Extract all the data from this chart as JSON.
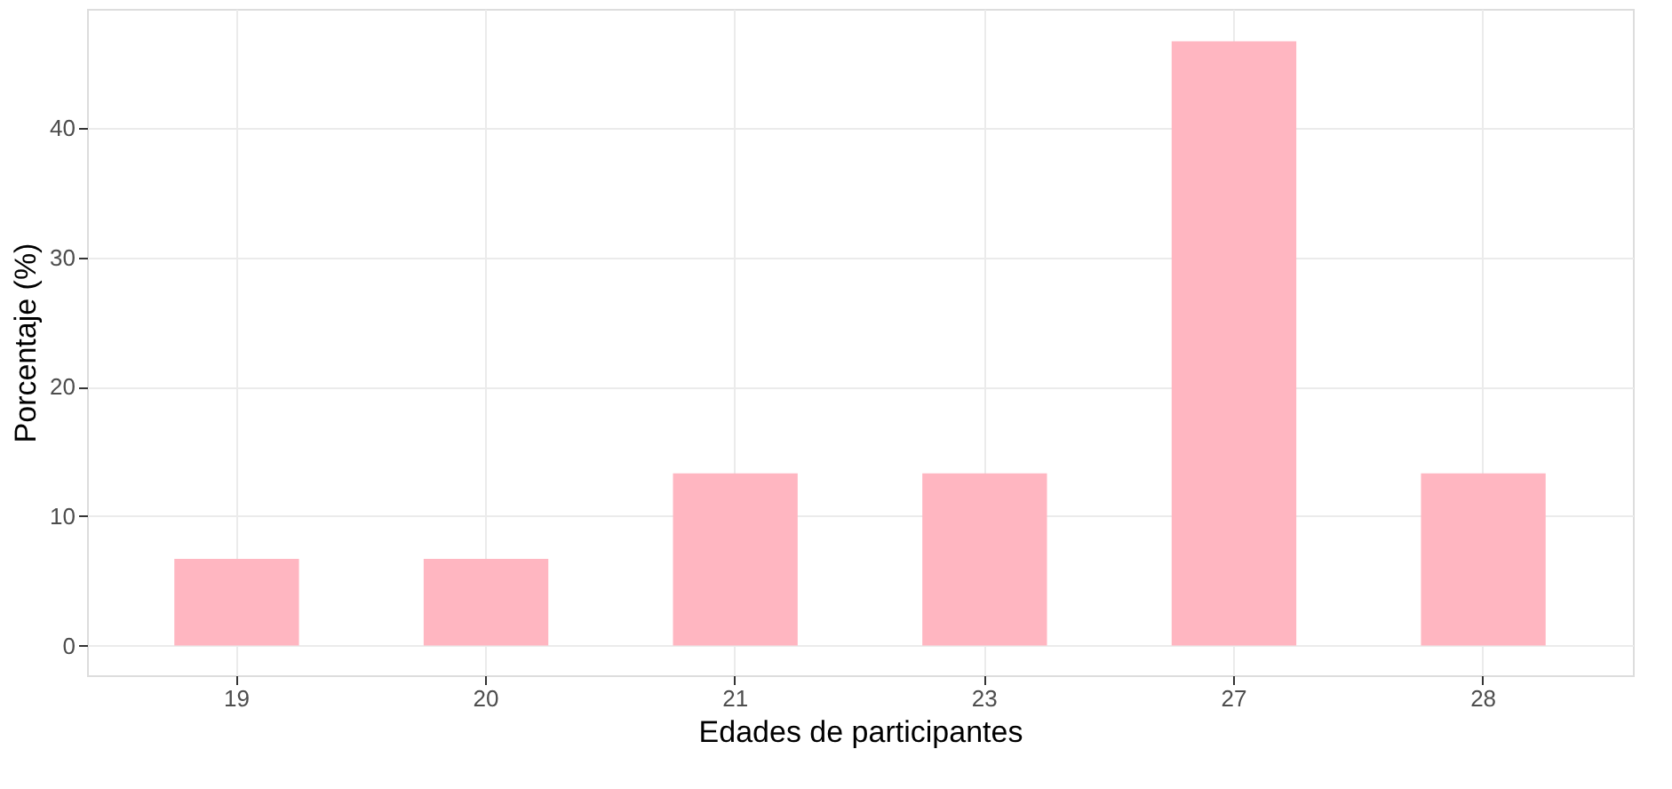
{
  "chart_data": {
    "type": "bar",
    "xlabel": "Edades de participantes",
    "ylabel": "Porcentaje (%)",
    "categories": [
      "19",
      "20",
      "21",
      "23",
      "27",
      "28"
    ],
    "values": [
      6.7,
      6.7,
      13.3,
      13.3,
      46.7,
      13.3
    ],
    "color": "#ffb6c1",
    "ylim": [
      -2.3,
      49.2
    ],
    "yticks": [
      0,
      10,
      20,
      30,
      40
    ],
    "grid": true
  }
}
